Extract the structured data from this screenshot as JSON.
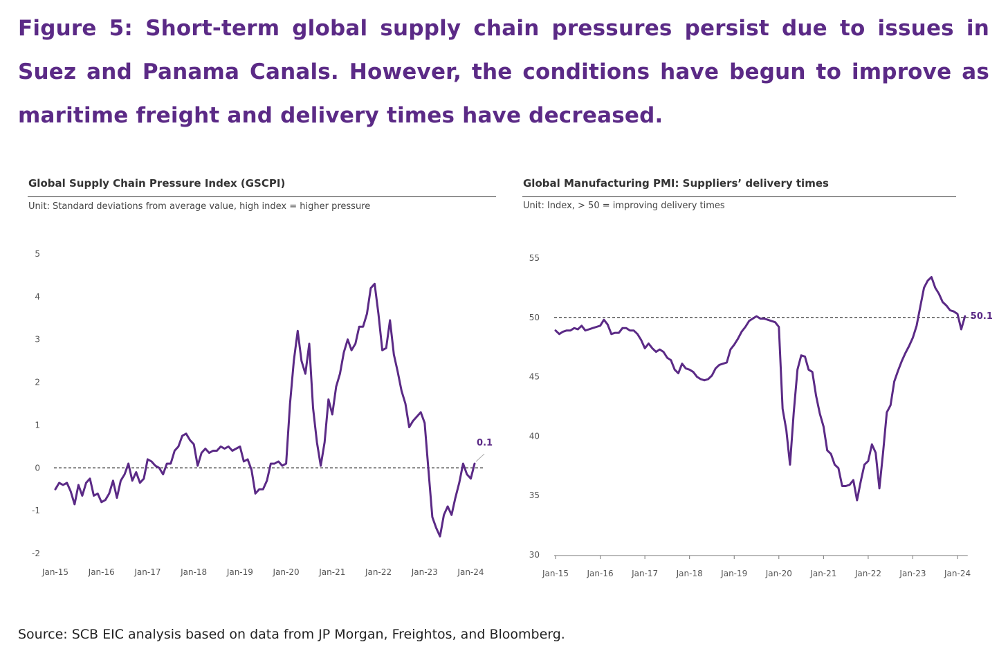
{
  "figure": {
    "title": "Figure 5: Short-term global supply chain pressures persist due to issues in Suez and Panama Canals. However, the conditions have begun to improve as maritime freight and delivery times have decreased.",
    "source": "Source: SCB EIC analysis based on data from JP Morgan, Freightos, and Bloomberg."
  },
  "colors": {
    "title": "#5b2a86",
    "series": "#5b2a86",
    "reference": "#222222",
    "axis_text": "#555555"
  },
  "chart_data": [
    {
      "type": "line",
      "title": "Global Supply Chain Pressure Index (GSCPI)",
      "unit": "Unit: Standard deviations from average value, high index = higher pressure",
      "ylim": [
        -2,
        5
      ],
      "yticks": [
        5,
        4,
        3,
        2,
        1,
        0,
        -1,
        -2
      ],
      "x_start": "Jan-15",
      "x_tick_labels": [
        "Jan-15",
        "Jan-16",
        "Jan-17",
        "Jan-18",
        "Jan-19",
        "Jan-20",
        "Jan-21",
        "Jan-22",
        "Jan-23",
        "Jan-24"
      ],
      "reference_line": 0,
      "end_label": "0.1",
      "series": [
        {
          "name": "GSCPI",
          "values": [
            -0.5,
            -0.35,
            -0.4,
            -0.35,
            -0.55,
            -0.85,
            -0.4,
            -0.65,
            -0.35,
            -0.25,
            -0.65,
            -0.6,
            -0.8,
            -0.75,
            -0.6,
            -0.3,
            -0.7,
            -0.3,
            -0.15,
            0.1,
            -0.3,
            -0.1,
            -0.35,
            -0.25,
            0.2,
            0.15,
            0.05,
            0.0,
            -0.15,
            0.1,
            0.1,
            0.4,
            0.5,
            0.75,
            0.8,
            0.65,
            0.55,
            0.05,
            0.35,
            0.45,
            0.35,
            0.4,
            0.4,
            0.5,
            0.45,
            0.5,
            0.4,
            0.45,
            0.5,
            0.15,
            0.2,
            -0.05,
            -0.6,
            -0.5,
            -0.5,
            -0.3,
            0.1,
            0.1,
            0.15,
            0.05,
            0.1,
            1.5,
            2.5,
            3.2,
            2.5,
            2.2,
            2.9,
            1.4,
            0.6,
            0.05,
            0.6,
            1.6,
            1.25,
            1.9,
            2.2,
            2.7,
            3.0,
            2.75,
            2.9,
            3.3,
            3.3,
            3.6,
            4.2,
            4.3,
            3.6,
            2.75,
            2.8,
            3.45,
            2.65,
            2.25,
            1.8,
            1.5,
            0.95,
            1.1,
            1.2,
            1.3,
            1.05,
            -0.05,
            -1.15,
            -1.4,
            -1.6,
            -1.1,
            -0.9,
            -1.1,
            -0.7,
            -0.35,
            0.1,
            -0.15,
            -0.25,
            0.1
          ]
        }
      ]
    },
    {
      "type": "line",
      "title": "Global Manufacturing PMI: Suppliers’ delivery times",
      "unit": "Unit: Index, > 50 = improving delivery times",
      "ylim": [
        30,
        55
      ],
      "yticks": [
        55,
        50,
        45,
        40,
        35,
        30
      ],
      "x_start": "Jan-15",
      "x_tick_labels": [
        "Jan-15",
        "Jan-16",
        "Jan-17",
        "Jan-18",
        "Jan-19",
        "Jan-20",
        "Jan-21",
        "Jan-22",
        "Jan-23",
        "Jan-24"
      ],
      "reference_line": 50,
      "end_label": "50.1",
      "series": [
        {
          "name": "Suppliers' delivery times",
          "values": [
            48.9,
            48.6,
            48.8,
            48.9,
            48.9,
            49.1,
            49.0,
            49.3,
            48.9,
            49.0,
            49.1,
            49.2,
            49.3,
            49.8,
            49.4,
            48.6,
            48.7,
            48.7,
            49.1,
            49.1,
            48.9,
            48.9,
            48.6,
            48.1,
            47.4,
            47.8,
            47.4,
            47.1,
            47.3,
            47.1,
            46.6,
            46.4,
            45.6,
            45.3,
            46.1,
            45.7,
            45.6,
            45.4,
            45.0,
            44.8,
            44.7,
            44.8,
            45.1,
            45.7,
            46.0,
            46.1,
            46.2,
            47.3,
            47.7,
            48.2,
            48.8,
            49.2,
            49.7,
            49.9,
            50.1,
            49.9,
            49.9,
            49.8,
            49.7,
            49.6,
            49.2,
            42.3,
            40.5,
            37.6,
            42.0,
            45.6,
            46.8,
            46.7,
            45.6,
            45.4,
            43.4,
            41.9,
            40.8,
            38.8,
            38.5,
            37.6,
            37.3,
            35.8,
            35.8,
            35.9,
            36.3,
            34.6,
            36.2,
            37.6,
            37.9,
            39.3,
            38.6,
            35.6,
            38.6,
            42.0,
            42.6,
            44.6,
            45.5,
            46.3,
            47.0,
            47.6,
            48.3,
            49.3,
            50.9,
            52.5,
            53.1,
            53.4,
            52.5,
            52.0,
            51.3,
            51.0,
            50.6,
            50.5,
            50.3,
            49.0,
            50.1
          ]
        }
      ]
    }
  ]
}
